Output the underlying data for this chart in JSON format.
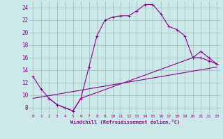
{
  "xlabel": "Windchill (Refroidissement éolien,°C)",
  "bg_color": "#cce8e8",
  "line_color": "#880088",
  "grid_color": "#99bbbb",
  "xlim": [
    -0.5,
    23.5
  ],
  "ylim": [
    7,
    25
  ],
  "yticks": [
    8,
    10,
    12,
    14,
    16,
    18,
    20,
    22,
    24
  ],
  "xticks": [
    0,
    1,
    2,
    3,
    4,
    5,
    6,
    7,
    8,
    9,
    10,
    11,
    12,
    13,
    14,
    15,
    16,
    17,
    18,
    19,
    20,
    21,
    22,
    23
  ],
  "line1_x": [
    0,
    1,
    2,
    3,
    4,
    5,
    6,
    7,
    8,
    9,
    10,
    11,
    12,
    13,
    14,
    15,
    16,
    17,
    18,
    19,
    20,
    21,
    22,
    23
  ],
  "line1_y": [
    13,
    11,
    9.5,
    8.5,
    8,
    7.5,
    9.5,
    14.5,
    19.5,
    22.0,
    22.5,
    22.7,
    22.7,
    23.5,
    24.5,
    24.5,
    23.0,
    21.0,
    20.5,
    19.5,
    16.0,
    16.0,
    15.5,
    15.0
  ],
  "line2_x": [
    2,
    3,
    4,
    5,
    6,
    20,
    21,
    22,
    23
  ],
  "line2_y": [
    9.5,
    8.5,
    8.0,
    7.5,
    9.5,
    16.0,
    17.0,
    16.0,
    15.0
  ],
  "line3_x": [
    0,
    23
  ],
  "line3_y": [
    9.5,
    14.5
  ]
}
